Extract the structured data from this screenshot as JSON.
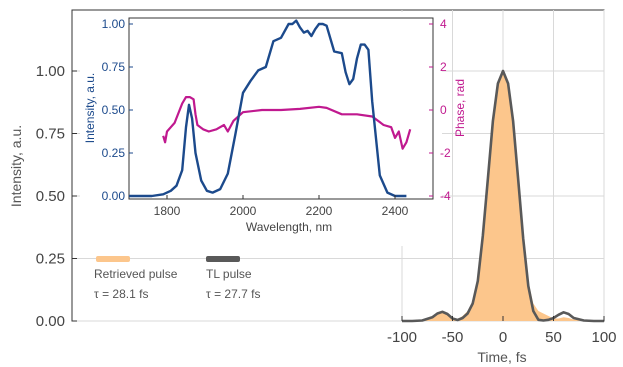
{
  "colors": {
    "retrieved": "#fcc68c",
    "tl": "#595959",
    "spectrum": "#1c4a8c",
    "phase": "#c0198f",
    "grid": "#d9d9d9",
    "frame": "#333333"
  },
  "chart_data": [
    {
      "type": "area",
      "xlabel": "Time, fs",
      "ylabel": "Intensity, a.u.",
      "xlim": [
        -100,
        100
      ],
      "ylim": [
        0,
        1.0
      ],
      "xticks": [
        -100,
        -50,
        0,
        50,
        100
      ],
      "yticks": [
        0.0,
        0.25,
        0.5,
        0.75,
        1.0
      ],
      "xtick_labels": [
        "-100",
        "-50",
        "0",
        "50",
        "100"
      ],
      "ytick_labels": [
        "0.00",
        "0.25",
        "0.50",
        "0.75",
        "1.00"
      ],
      "grid": true,
      "series": [
        {
          "name": "Retrieved pulse",
          "annotation": "τ = 28.1 fs",
          "x": [
            -100,
            -90,
            -80,
            -70,
            -65,
            -60,
            -55,
            -50,
            -45,
            -40,
            -35,
            -30,
            -25,
            -20,
            -15,
            -10,
            -5,
            0,
            5,
            10,
            15,
            20,
            25,
            30,
            35,
            40,
            45,
            50,
            55,
            60,
            65,
            70,
            80,
            90,
            100
          ],
          "y": [
            0.0,
            0.0,
            0.002,
            0.015,
            0.03,
            0.035,
            0.028,
            0.012,
            0.008,
            0.02,
            0.04,
            0.08,
            0.17,
            0.35,
            0.58,
            0.8,
            0.95,
            1.0,
            0.94,
            0.79,
            0.57,
            0.34,
            0.16,
            0.07,
            0.04,
            0.03,
            0.02,
            0.01,
            0.01,
            0.015,
            0.012,
            0.006,
            0.001,
            0.0,
            0.0
          ]
        },
        {
          "name": "TL pulse",
          "annotation": "τ = 27.7 fs",
          "x": [
            -100,
            -90,
            -80,
            -70,
            -65,
            -60,
            -55,
            -50,
            -45,
            -40,
            -35,
            -30,
            -25,
            -20,
            -15,
            -10,
            -5,
            0,
            5,
            10,
            15,
            20,
            25,
            30,
            35,
            40,
            45,
            50,
            55,
            60,
            65,
            70,
            80,
            90,
            100
          ],
          "y": [
            0.0,
            0.0,
            0.002,
            0.015,
            0.03,
            0.037,
            0.028,
            0.01,
            0.004,
            0.012,
            0.03,
            0.07,
            0.16,
            0.34,
            0.57,
            0.8,
            0.95,
            1.0,
            0.95,
            0.8,
            0.57,
            0.33,
            0.14,
            0.04,
            0.005,
            0.002,
            0.005,
            0.012,
            0.025,
            0.035,
            0.028,
            0.012,
            0.002,
            0.0,
            0.0
          ]
        }
      ]
    },
    {
      "type": "line",
      "xlabel": "Wavelength, nm",
      "ylabel": "Intensity, a.u.",
      "y2label": "Phase, rad",
      "xlim": [
        1700,
        2500
      ],
      "ylim": [
        0,
        1.0
      ],
      "y2lim": [
        -4,
        4
      ],
      "xticks": [
        1800,
        2000,
        2200,
        2400
      ],
      "xtick_labels": [
        "1800",
        "2000",
        "2200",
        "2400"
      ],
      "yticks": [
        0.0,
        0.25,
        0.5,
        0.75,
        1.0
      ],
      "ytick_labels": [
        "0.00",
        "0.25",
        "0.50",
        "0.75",
        "1.00"
      ],
      "y2ticks": [
        -4,
        -2,
        0,
        2,
        4
      ],
      "y2tick_labels": [
        "-4",
        "-2",
        "0",
        "2",
        "4"
      ],
      "series": [
        {
          "axis": "left",
          "x": [
            1700,
            1760,
            1790,
            1810,
            1825,
            1840,
            1850,
            1858,
            1866,
            1875,
            1890,
            1905,
            1920,
            1940,
            1960,
            1980,
            2000,
            2020,
            2040,
            2060,
            2080,
            2100,
            2120,
            2130,
            2140,
            2150,
            2160,
            2170,
            2180,
            2190,
            2200,
            2210,
            2220,
            2240,
            2260,
            2270,
            2280,
            2290,
            2300,
            2310,
            2320,
            2330,
            2340,
            2360,
            2380,
            2400,
            2430
          ],
          "y": [
            0.0,
            0.0,
            0.01,
            0.03,
            0.06,
            0.15,
            0.4,
            0.53,
            0.45,
            0.25,
            0.09,
            0.03,
            0.02,
            0.04,
            0.13,
            0.36,
            0.6,
            0.67,
            0.73,
            0.75,
            0.9,
            0.92,
            1.0,
            1.0,
            1.02,
            0.98,
            0.95,
            0.96,
            0.93,
            0.97,
            1.0,
            1.0,
            0.99,
            0.84,
            0.83,
            0.72,
            0.65,
            0.68,
            0.8,
            0.88,
            0.88,
            0.85,
            0.55,
            0.12,
            0.02,
            0.0,
            0.0
          ]
        },
        {
          "axis": "right",
          "x": [
            1790,
            1795,
            1800,
            1810,
            1820,
            1840,
            1850,
            1860,
            1870,
            1875,
            1880,
            1895,
            1910,
            1930,
            1950,
            1960,
            1975,
            2000,
            2050,
            2100,
            2150,
            2200,
            2220,
            2260,
            2300,
            2340,
            2370,
            2390,
            2400,
            2410,
            2420,
            2430,
            2440
          ],
          "y": [
            -1.2,
            -1.5,
            -1.0,
            -0.8,
            -0.6,
            0.3,
            0.6,
            0.6,
            0.5,
            -0.2,
            -0.7,
            -0.9,
            -1.0,
            -0.9,
            -0.7,
            -1.0,
            -0.5,
            -0.1,
            0.0,
            0.0,
            0.05,
            0.15,
            0.1,
            -0.2,
            -0.2,
            -0.3,
            -0.7,
            -0.8,
            -1.3,
            -1.0,
            -1.8,
            -1.5,
            -0.9
          ]
        }
      ]
    }
  ]
}
